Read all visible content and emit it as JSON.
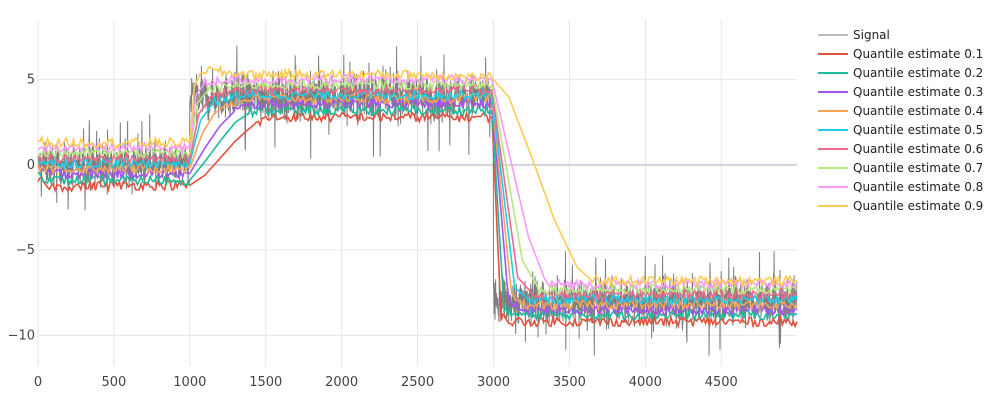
{
  "chart_data": {
    "type": "line",
    "title": "",
    "xlabel": "",
    "ylabel": "",
    "xlim": [
      0,
      4999
    ],
    "ylim": [
      -11.8,
      8.5
    ],
    "xticks": [
      0,
      500,
      1000,
      1500,
      2000,
      2500,
      3000,
      3500,
      4000,
      4500
    ],
    "yticks": [
      5,
      0,
      -5,
      -10
    ],
    "ytick_labels": [
      "5",
      "0",
      "−5",
      "−10"
    ],
    "grid": true,
    "legend_position": "top-right",
    "signal": {
      "name": "Signal",
      "color": "#777777",
      "segments": [
        {
          "x_start": 0,
          "x_end": 1000,
          "mean": 0,
          "noise_amplitude": 2.3
        },
        {
          "x_start": 1000,
          "x_end": 3000,
          "mean": 4,
          "noise_amplitude": 2.6
        },
        {
          "x_start": 3000,
          "x_end": 4999,
          "mean": -8,
          "noise_amplitude": 2.6
        }
      ]
    },
    "series": [
      {
        "name": "Quantile estimate 0.1",
        "color": "#e4513c",
        "points": [
          [
            0,
            -0.9
          ],
          [
            100,
            -1.3
          ],
          [
            500,
            -1.2
          ],
          [
            1000,
            -1.2
          ],
          [
            1100,
            -0.6
          ],
          [
            1200,
            0.4
          ],
          [
            1300,
            1.4
          ],
          [
            1400,
            2.2
          ],
          [
            1500,
            2.7
          ],
          [
            1600,
            2.8
          ],
          [
            2000,
            2.8
          ],
          [
            2500,
            2.8
          ],
          [
            2990,
            2.8
          ],
          [
            3050,
            -8.9
          ],
          [
            3100,
            -9.2
          ],
          [
            3500,
            -9.2
          ],
          [
            4000,
            -9.2
          ],
          [
            4999,
            -9.2
          ]
        ]
      },
      {
        "name": "Quantile estimate 0.2",
        "color": "#1bbc9a",
        "points": [
          [
            0,
            -0.6
          ],
          [
            100,
            -0.9
          ],
          [
            500,
            -0.9
          ],
          [
            1000,
            -0.9
          ],
          [
            1100,
            0.2
          ],
          [
            1200,
            1.4
          ],
          [
            1300,
            2.5
          ],
          [
            1400,
            3.1
          ],
          [
            1500,
            3.2
          ],
          [
            2000,
            3.2
          ],
          [
            2500,
            3.2
          ],
          [
            2990,
            3.2
          ],
          [
            3070,
            -8.6
          ],
          [
            3150,
            -8.8
          ],
          [
            3500,
            -8.8
          ],
          [
            4000,
            -8.8
          ],
          [
            4999,
            -8.8
          ]
        ]
      },
      {
        "name": "Quantile estimate 0.3",
        "color": "#a653f0",
        "points": [
          [
            0,
            -0.3
          ],
          [
            100,
            -0.5
          ],
          [
            500,
            -0.5
          ],
          [
            1000,
            -0.5
          ],
          [
            1100,
            1.0
          ],
          [
            1200,
            2.3
          ],
          [
            1300,
            3.2
          ],
          [
            1400,
            3.5
          ],
          [
            1500,
            3.6
          ],
          [
            2000,
            3.6
          ],
          [
            2500,
            3.6
          ],
          [
            2990,
            3.6
          ],
          [
            3100,
            -8.1
          ],
          [
            3180,
            -8.5
          ],
          [
            3500,
            -8.5
          ],
          [
            4000,
            -8.5
          ],
          [
            4999,
            -8.5
          ]
        ]
      },
      {
        "name": "Quantile estimate 0.4",
        "color": "#f8a35a",
        "points": [
          [
            0,
            -0.1
          ],
          [
            100,
            -0.2
          ],
          [
            500,
            -0.2
          ],
          [
            1000,
            -0.2
          ],
          [
            1080,
            1.8
          ],
          [
            1160,
            3.0
          ],
          [
            1250,
            3.6
          ],
          [
            1400,
            3.9
          ],
          [
            2000,
            3.9
          ],
          [
            2500,
            3.9
          ],
          [
            2990,
            3.9
          ],
          [
            3120,
            -7.7
          ],
          [
            3200,
            -8.2
          ],
          [
            3500,
            -8.2
          ],
          [
            4000,
            -8.2
          ],
          [
            4999,
            -8.2
          ]
        ]
      },
      {
        "name": "Quantile estimate 0.5",
        "color": "#1fcde6",
        "points": [
          [
            0,
            0.2
          ],
          [
            100,
            0.1
          ],
          [
            500,
            0.1
          ],
          [
            1000,
            0.1
          ],
          [
            1070,
            2.6
          ],
          [
            1150,
            3.6
          ],
          [
            1250,
            4.0
          ],
          [
            1400,
            4.1
          ],
          [
            2000,
            4.1
          ],
          [
            2500,
            4.1
          ],
          [
            2990,
            4.1
          ],
          [
            3140,
            -7.2
          ],
          [
            3230,
            -7.9
          ],
          [
            3500,
            -7.9
          ],
          [
            4000,
            -7.9
          ],
          [
            4999,
            -7.9
          ]
        ]
      },
      {
        "name": "Quantile estimate 0.6",
        "color": "#f2688a",
        "points": [
          [
            0,
            0.5
          ],
          [
            100,
            0.4
          ],
          [
            500,
            0.4
          ],
          [
            1000,
            0.4
          ],
          [
            1060,
            3.0
          ],
          [
            1140,
            4.0
          ],
          [
            1250,
            4.3
          ],
          [
            1400,
            4.4
          ],
          [
            2000,
            4.4
          ],
          [
            2500,
            4.4
          ],
          [
            2990,
            4.4
          ],
          [
            3160,
            -6.6
          ],
          [
            3260,
            -7.6
          ],
          [
            3500,
            -7.6
          ],
          [
            4000,
            -7.6
          ],
          [
            4999,
            -7.6
          ]
        ]
      },
      {
        "name": "Quantile estimate 0.7",
        "color": "#b6e880",
        "points": [
          [
            0,
            0.8
          ],
          [
            100,
            0.7
          ],
          [
            500,
            0.7
          ],
          [
            1000,
            0.7
          ],
          [
            1050,
            3.6
          ],
          [
            1120,
            4.4
          ],
          [
            1250,
            4.6
          ],
          [
            1400,
            4.7
          ],
          [
            2000,
            4.7
          ],
          [
            2500,
            4.7
          ],
          [
            2990,
            4.7
          ],
          [
            3190,
            -5.6
          ],
          [
            3300,
            -7.3
          ],
          [
            3500,
            -7.3
          ],
          [
            4000,
            -7.3
          ],
          [
            4999,
            -7.3
          ]
        ]
      },
      {
        "name": "Quantile estimate 0.8",
        "color": "#ff97ff",
        "points": [
          [
            0,
            1.1
          ],
          [
            100,
            1.0
          ],
          [
            500,
            1.0
          ],
          [
            1000,
            1.0
          ],
          [
            1040,
            4.1
          ],
          [
            1100,
            4.8
          ],
          [
            1250,
            5.0
          ],
          [
            1400,
            5.0
          ],
          [
            2000,
            5.0
          ],
          [
            2500,
            5.0
          ],
          [
            2990,
            5.0
          ],
          [
            3230,
            -4.2
          ],
          [
            3350,
            -7.0
          ],
          [
            3500,
            -7.0
          ],
          [
            4000,
            -7.0
          ],
          [
            4999,
            -7.0
          ]
        ]
      },
      {
        "name": "Quantile estimate 0.9",
        "color": "#fecb52",
        "points": [
          [
            0,
            1.4
          ],
          [
            100,
            1.3
          ],
          [
            500,
            1.3
          ],
          [
            1000,
            1.3
          ],
          [
            1030,
            4.6
          ],
          [
            1080,
            5.6
          ],
          [
            1250,
            5.4
          ],
          [
            1400,
            5.3
          ],
          [
            2000,
            5.3
          ],
          [
            2500,
            5.3
          ],
          [
            2990,
            5.1
          ],
          [
            3100,
            4.0
          ],
          [
            3250,
            0.5
          ],
          [
            3400,
            -3.2
          ],
          [
            3550,
            -6.0
          ],
          [
            3650,
            -6.8
          ],
          [
            4000,
            -6.8
          ],
          [
            4999,
            -6.8
          ]
        ]
      }
    ]
  }
}
